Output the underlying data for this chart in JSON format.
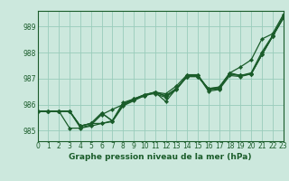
{
  "xlabel": "Graphe pression niveau de la mer (hPa)",
  "background_color": "#cce8dd",
  "grid_color": "#99ccbb",
  "line_color": "#1a5c2a",
  "xlim": [
    0,
    23
  ],
  "ylim": [
    984.6,
    989.6
  ],
  "yticks": [
    985,
    986,
    987,
    988,
    989
  ],
  "xticks": [
    0,
    1,
    2,
    3,
    4,
    5,
    6,
    7,
    8,
    9,
    10,
    11,
    12,
    13,
    14,
    15,
    16,
    17,
    18,
    19,
    20,
    21,
    22,
    23
  ],
  "series": [
    [
      985.75,
      985.75,
      985.75,
      985.75,
      985.12,
      985.22,
      985.62,
      985.82,
      986.0,
      986.22,
      986.38,
      986.48,
      986.35,
      986.62,
      987.08,
      987.08,
      986.62,
      986.65,
      987.18,
      987.12,
      987.22,
      988.02,
      988.65,
      989.38
    ],
    [
      985.75,
      985.75,
      985.75,
      985.1,
      985.1,
      985.18,
      985.28,
      985.38,
      985.98,
      986.18,
      986.38,
      986.48,
      986.12,
      986.62,
      987.08,
      987.12,
      986.52,
      986.58,
      987.12,
      987.08,
      987.18,
      987.92,
      988.62,
      989.32
    ],
    [
      985.75,
      985.75,
      985.75,
      985.75,
      985.18,
      985.28,
      985.68,
      985.38,
      986.08,
      986.22,
      986.38,
      986.42,
      986.28,
      986.58,
      987.08,
      987.08,
      986.62,
      986.68,
      987.22,
      987.12,
      987.18,
      987.92,
      988.62,
      989.32
    ],
    [
      985.75,
      985.75,
      985.75,
      985.75,
      985.18,
      985.28,
      985.68,
      985.38,
      986.02,
      986.22,
      986.32,
      986.48,
      986.32,
      986.62,
      987.12,
      987.12,
      986.58,
      986.62,
      987.18,
      987.12,
      987.18,
      987.92,
      988.62,
      989.32
    ],
    [
      985.75,
      985.75,
      985.75,
      985.75,
      985.18,
      985.28,
      985.28,
      985.35,
      985.95,
      986.15,
      986.35,
      986.48,
      986.42,
      986.72,
      987.15,
      987.15,
      986.58,
      986.62,
      987.22,
      987.45,
      987.72,
      988.52,
      988.72,
      989.45
    ]
  ],
  "marker_series": [
    [
      985.75,
      985.75,
      985.75,
      985.75,
      985.12,
      985.22,
      985.62,
      985.82,
      986.0,
      986.22,
      986.38,
      986.48,
      986.35,
      986.62,
      987.08,
      987.08,
      986.62,
      986.65,
      987.18,
      987.12,
      987.22,
      988.02,
      988.65,
      989.38
    ],
    [
      985.75,
      985.75,
      985.75,
      985.1,
      985.1,
      985.18,
      985.28,
      985.38,
      985.98,
      986.18,
      986.38,
      986.48,
      986.12,
      986.62,
      987.08,
      987.12,
      986.52,
      986.58,
      987.12,
      987.08,
      987.18,
      987.92,
      988.62,
      989.32
    ],
    [
      985.75,
      985.75,
      985.75,
      985.75,
      985.18,
      985.28,
      985.68,
      985.38,
      986.08,
      986.22,
      986.38,
      986.42,
      986.28,
      986.58,
      987.08,
      987.08,
      986.62,
      986.68,
      987.22,
      987.12,
      987.18,
      987.92,
      988.62,
      989.32
    ],
    [
      985.75,
      985.75,
      985.75,
      985.75,
      985.18,
      985.28,
      985.68,
      985.38,
      986.02,
      986.22,
      986.32,
      986.48,
      986.32,
      986.62,
      987.12,
      987.12,
      986.58,
      986.62,
      987.18,
      987.12,
      987.18,
      987.92,
      988.62,
      989.32
    ],
    [
      985.75,
      985.75,
      985.75,
      985.75,
      985.18,
      985.28,
      985.28,
      985.35,
      985.95,
      986.15,
      986.35,
      986.48,
      986.42,
      986.72,
      987.15,
      987.15,
      986.58,
      986.62,
      987.22,
      987.45,
      987.72,
      988.52,
      988.72,
      989.45
    ]
  ],
  "linewidth": 0.9,
  "markersize": 2.2,
  "marker": "D",
  "xlabel_fontsize": 6.5,
  "tick_fontsize": 5.5
}
